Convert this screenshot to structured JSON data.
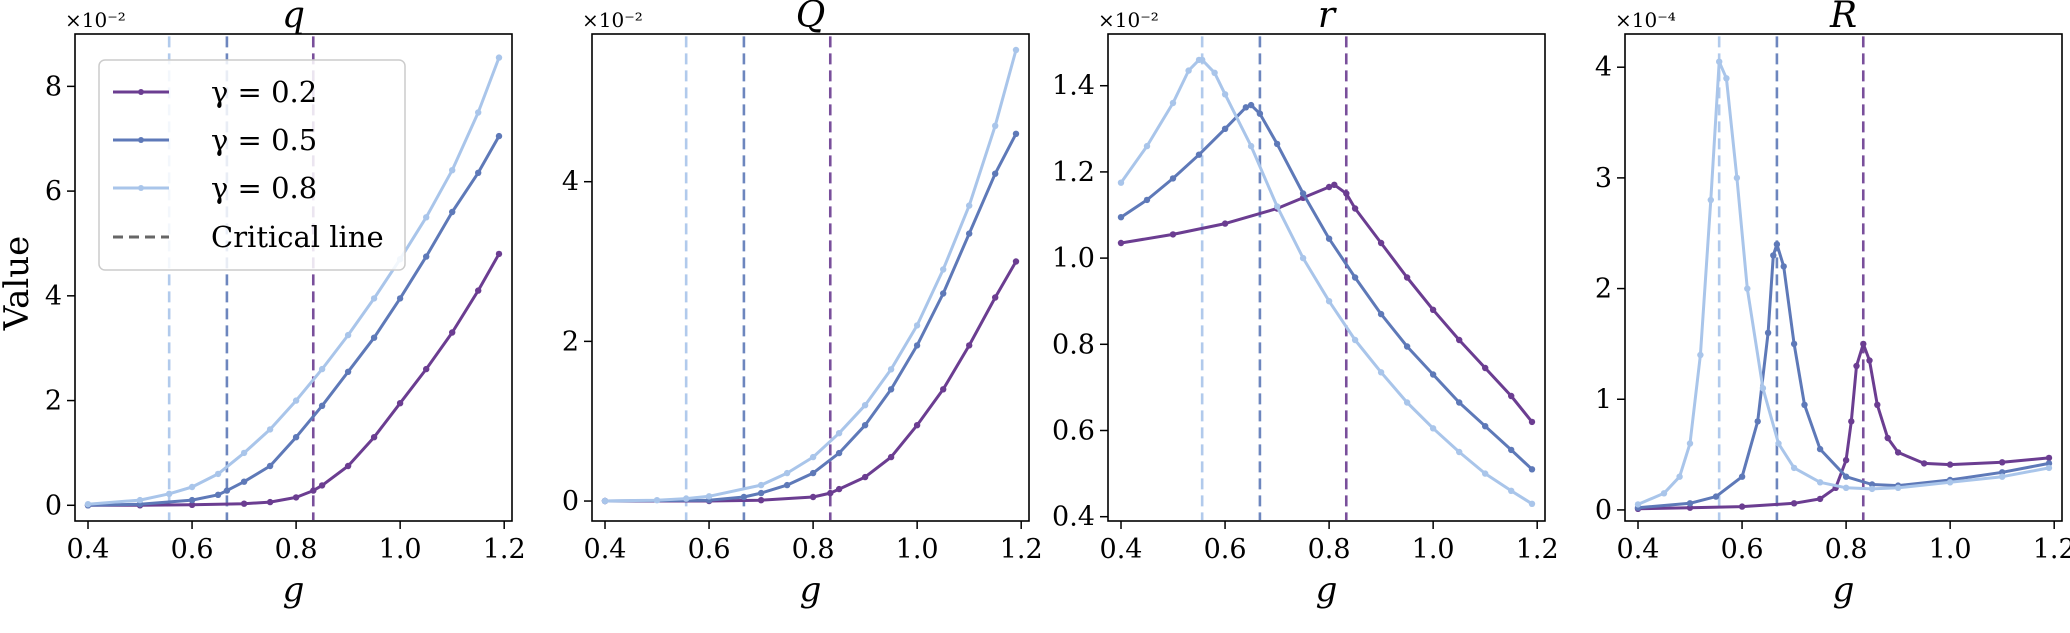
{
  "figure": {
    "ylabel": "Value"
  },
  "legend": {
    "entries": [
      {
        "label": "γ = 0.2",
        "color": "#6b3d91"
      },
      {
        "label": "γ = 0.5",
        "color": "#5e79b8"
      },
      {
        "label": "γ = 0.8",
        "color": "#a9c5ea"
      },
      {
        "label": "Critical line",
        "color": "#666666",
        "style": "dashed"
      }
    ]
  },
  "chart_data": [
    {
      "type": "line",
      "title": "q",
      "xlabel": "g",
      "ylabel": "Value",
      "multiplier": "×10⁻²",
      "xlim": [
        0.375,
        1.215
      ],
      "ylim": [
        -0.3,
        9.0
      ],
      "xticks": [
        "0.4",
        "0.6",
        "0.8",
        "1.0",
        "1.2"
      ],
      "yticks": [
        "0",
        "2",
        "4",
        "6",
        "8"
      ],
      "critical_g": [
        0.833,
        0.667,
        0.556
      ],
      "series": [
        {
          "name": "γ = 0.2",
          "color": "#6b3d91",
          "x": [
            0.4,
            0.5,
            0.6,
            0.7,
            0.75,
            0.8,
            0.833,
            0.85,
            0.9,
            0.95,
            1.0,
            1.05,
            1.1,
            1.15,
            1.19
          ],
          "y": [
            0,
            0,
            0.01,
            0.03,
            0.06,
            0.15,
            0.28,
            0.38,
            0.75,
            1.3,
            1.95,
            2.6,
            3.3,
            4.1,
            4.8
          ]
        },
        {
          "name": "γ = 0.5",
          "color": "#5e79b8",
          "x": [
            0.4,
            0.5,
            0.6,
            0.65,
            0.667,
            0.7,
            0.75,
            0.8,
            0.85,
            0.9,
            0.95,
            1.0,
            1.05,
            1.1,
            1.15,
            1.19
          ],
          "y": [
            0,
            0.02,
            0.1,
            0.2,
            0.28,
            0.45,
            0.75,
            1.3,
            1.9,
            2.55,
            3.2,
            3.95,
            4.75,
            5.6,
            6.35,
            7.05
          ]
        },
        {
          "name": "γ = 0.8",
          "color": "#a9c5ea",
          "x": [
            0.4,
            0.5,
            0.556,
            0.6,
            0.65,
            0.7,
            0.75,
            0.8,
            0.85,
            0.9,
            0.95,
            1.0,
            1.05,
            1.1,
            1.15,
            1.19
          ],
          "y": [
            0.02,
            0.1,
            0.22,
            0.35,
            0.6,
            1.0,
            1.45,
            2.0,
            2.6,
            3.25,
            3.95,
            4.7,
            5.5,
            6.4,
            7.5,
            8.55
          ]
        }
      ]
    },
    {
      "type": "line",
      "title": "Q",
      "xlabel": "g",
      "multiplier": "×10⁻²",
      "xlim": [
        0.375,
        1.215
      ],
      "ylim": [
        -0.25,
        5.85
      ],
      "xticks": [
        "0.4",
        "0.6",
        "0.8",
        "1.0",
        "1.2"
      ],
      "yticks": [
        "0",
        "2",
        "4"
      ],
      "critical_g": [
        0.833,
        0.667,
        0.556
      ],
      "series": [
        {
          "name": "γ = 0.2",
          "color": "#6b3d91",
          "x": [
            0.4,
            0.6,
            0.7,
            0.8,
            0.833,
            0.85,
            0.9,
            0.95,
            1.0,
            1.05,
            1.1,
            1.15,
            1.19
          ],
          "y": [
            0,
            0,
            0.01,
            0.05,
            0.1,
            0.15,
            0.3,
            0.55,
            0.95,
            1.4,
            1.95,
            2.55,
            3.0
          ]
        },
        {
          "name": "γ = 0.5",
          "color": "#5e79b8",
          "x": [
            0.4,
            0.6,
            0.667,
            0.7,
            0.75,
            0.8,
            0.85,
            0.9,
            0.95,
            1.0,
            1.05,
            1.1,
            1.15,
            1.19
          ],
          "y": [
            0,
            0.01,
            0.05,
            0.1,
            0.2,
            0.35,
            0.6,
            0.95,
            1.4,
            1.95,
            2.6,
            3.35,
            4.1,
            4.6
          ]
        },
        {
          "name": "γ = 0.8",
          "color": "#a9c5ea",
          "x": [
            0.4,
            0.5,
            0.556,
            0.6,
            0.7,
            0.75,
            0.8,
            0.85,
            0.9,
            0.95,
            1.0,
            1.05,
            1.1,
            1.15,
            1.19
          ],
          "y": [
            0,
            0.01,
            0.03,
            0.06,
            0.2,
            0.35,
            0.55,
            0.85,
            1.2,
            1.65,
            2.2,
            2.9,
            3.7,
            4.7,
            5.65
          ]
        }
      ]
    },
    {
      "type": "line",
      "title": "r",
      "xlabel": "g",
      "multiplier": "×10⁻²",
      "xlim": [
        0.375,
        1.215
      ],
      "ylim": [
        0.39,
        1.52
      ],
      "xticks": [
        "0.4",
        "0.6",
        "0.8",
        "1.0",
        "1.2"
      ],
      "yticks": [
        "0.4",
        "0.6",
        "0.8",
        "1.0",
        "1.2",
        "1.4"
      ],
      "critical_g": [
        0.833,
        0.667,
        0.556
      ],
      "series": [
        {
          "name": "γ = 0.2",
          "color": "#6b3d91",
          "x": [
            0.4,
            0.5,
            0.6,
            0.7,
            0.75,
            0.8,
            0.81,
            0.833,
            0.85,
            0.9,
            0.95,
            1.0,
            1.05,
            1.1,
            1.15,
            1.19
          ],
          "y": [
            1.035,
            1.055,
            1.08,
            1.115,
            1.14,
            1.165,
            1.17,
            1.15,
            1.115,
            1.035,
            0.955,
            0.88,
            0.81,
            0.745,
            0.68,
            0.62
          ]
        },
        {
          "name": "γ = 0.5",
          "color": "#5e79b8",
          "x": [
            0.4,
            0.45,
            0.5,
            0.55,
            0.6,
            0.64,
            0.65,
            0.667,
            0.7,
            0.75,
            0.8,
            0.85,
            0.9,
            0.95,
            1.0,
            1.05,
            1.1,
            1.15,
            1.19
          ],
          "y": [
            1.095,
            1.135,
            1.185,
            1.24,
            1.3,
            1.35,
            1.355,
            1.335,
            1.265,
            1.15,
            1.045,
            0.955,
            0.87,
            0.795,
            0.73,
            0.665,
            0.61,
            0.555,
            0.51
          ]
        },
        {
          "name": "γ = 0.8",
          "color": "#a9c5ea",
          "x": [
            0.4,
            0.45,
            0.5,
            0.53,
            0.55,
            0.556,
            0.58,
            0.6,
            0.65,
            0.7,
            0.75,
            0.8,
            0.85,
            0.9,
            0.95,
            1.0,
            1.05,
            1.1,
            1.15,
            1.19
          ],
          "y": [
            1.175,
            1.26,
            1.36,
            1.435,
            1.46,
            1.46,
            1.43,
            1.38,
            1.26,
            1.12,
            1.0,
            0.9,
            0.81,
            0.735,
            0.665,
            0.605,
            0.55,
            0.5,
            0.46,
            0.43
          ]
        }
      ]
    },
    {
      "type": "line",
      "title": "R",
      "xlabel": "g",
      "multiplier": "×10⁻⁴",
      "xlim": [
        0.375,
        1.215
      ],
      "ylim": [
        -0.1,
        4.3
      ],
      "xticks": [
        "0.4",
        "0.6",
        "0.8",
        "1.0",
        "1.2"
      ],
      "yticks": [
        "0",
        "1",
        "2",
        "3",
        "4"
      ],
      "critical_g": [
        0.833,
        0.667,
        0.556
      ],
      "series": [
        {
          "name": "γ = 0.2",
          "color": "#6b3d91",
          "x": [
            0.4,
            0.5,
            0.6,
            0.7,
            0.75,
            0.78,
            0.8,
            0.81,
            0.82,
            0.833,
            0.845,
            0.86,
            0.88,
            0.9,
            0.95,
            1.0,
            1.1,
            1.19
          ],
          "y": [
            0.01,
            0.02,
            0.03,
            0.06,
            0.1,
            0.2,
            0.45,
            0.8,
            1.3,
            1.5,
            1.35,
            0.95,
            0.65,
            0.52,
            0.42,
            0.41,
            0.43,
            0.47
          ]
        },
        {
          "name": "γ = 0.5",
          "color": "#5e79b8",
          "x": [
            0.4,
            0.5,
            0.55,
            0.6,
            0.63,
            0.65,
            0.66,
            0.667,
            0.68,
            0.7,
            0.72,
            0.75,
            0.8,
            0.85,
            0.9,
            1.0,
            1.1,
            1.19
          ],
          "y": [
            0.02,
            0.06,
            0.12,
            0.3,
            0.8,
            1.6,
            2.3,
            2.4,
            2.2,
            1.5,
            0.95,
            0.55,
            0.3,
            0.23,
            0.22,
            0.27,
            0.34,
            0.42
          ]
        },
        {
          "name": "γ = 0.8",
          "color": "#a9c5ea",
          "x": [
            0.4,
            0.45,
            0.48,
            0.5,
            0.52,
            0.54,
            0.556,
            0.57,
            0.59,
            0.61,
            0.64,
            0.67,
            0.7,
            0.75,
            0.8,
            0.85,
            0.9,
            1.0,
            1.1,
            1.19
          ],
          "y": [
            0.05,
            0.15,
            0.3,
            0.6,
            1.4,
            2.8,
            4.05,
            3.9,
            3.0,
            2.0,
            1.1,
            0.6,
            0.38,
            0.25,
            0.2,
            0.19,
            0.2,
            0.25,
            0.3,
            0.38
          ]
        }
      ]
    }
  ]
}
